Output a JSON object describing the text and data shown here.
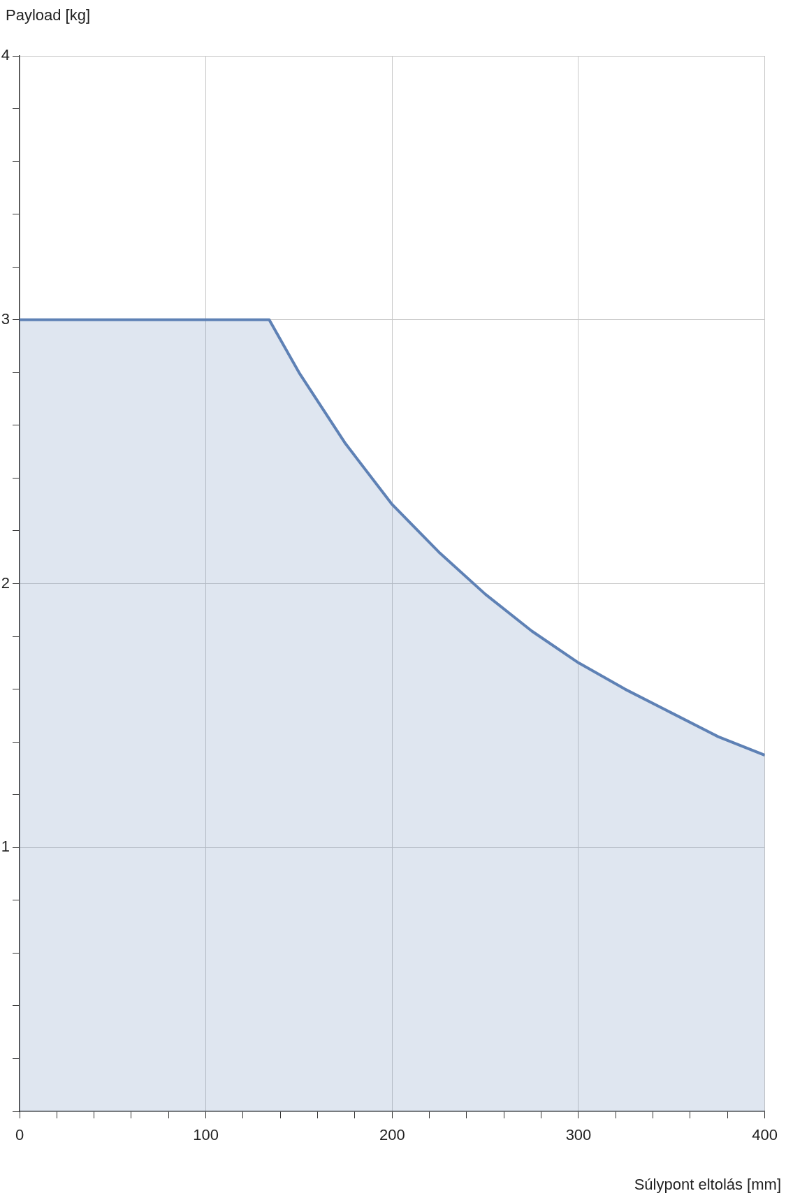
{
  "chart_data": {
    "type": "area",
    "xlabel": "Súlypont eltolás [mm]",
    "ylabel": "Payload [kg]",
    "xlim": [
      0,
      400
    ],
    "ylim": [
      0,
      4
    ],
    "xticks": [
      0,
      {
        "value": 20,
        "label": null
      },
      {
        "value": 40,
        "label": null
      },
      {
        "value": 60,
        "label": null
      },
      {
        "value": 80,
        "label": null
      },
      100,
      {
        "value": 120,
        "label": null
      },
      {
        "value": 140,
        "label": null
      },
      {
        "value": 160,
        "label": null
      },
      {
        "value": 180,
        "label": null
      },
      200,
      {
        "value": 220,
        "label": null
      },
      {
        "value": 240,
        "label": null
      },
      {
        "value": 260,
        "label": null
      },
      {
        "value": 280,
        "label": null
      },
      300,
      {
        "value": 320,
        "label": null
      },
      {
        "value": 340,
        "label": null
      },
      {
        "value": 360,
        "label": null
      },
      {
        "value": 380,
        "label": null
      },
      400
    ],
    "yticks": [
      {
        "value": 0,
        "label": null
      },
      {
        "value": 0.2,
        "label": null
      },
      {
        "value": 0.4,
        "label": null
      },
      {
        "value": 0.6,
        "label": null
      },
      {
        "value": 0.8,
        "label": null
      },
      1,
      {
        "value": 1.2,
        "label": null
      },
      {
        "value": 1.4,
        "label": null
      },
      {
        "value": 1.6,
        "label": null
      },
      {
        "value": 1.8,
        "label": null
      },
      2,
      {
        "value": 2.2,
        "label": null
      },
      {
        "value": 2.4,
        "label": null
      },
      {
        "value": 2.6,
        "label": null
      },
      {
        "value": 2.8,
        "label": null
      },
      3,
      {
        "value": 3.2,
        "label": null
      },
      {
        "value": 3.4,
        "label": null
      },
      {
        "value": 3.6,
        "label": null
      },
      {
        "value": 3.8,
        "label": null
      },
      4
    ],
    "grid": true,
    "x": [
      0,
      134,
      150,
      175,
      200,
      225,
      250,
      275,
      300,
      325,
      350,
      375,
      400
    ],
    "series": [
      {
        "color": "#5e81b5",
        "values": [
          3,
          3,
          2.8,
          2.53,
          2.3,
          2.12,
          1.96,
          1.82,
          1.7,
          1.6,
          1.51,
          1.42,
          1.35
        ]
      }
    ]
  }
}
